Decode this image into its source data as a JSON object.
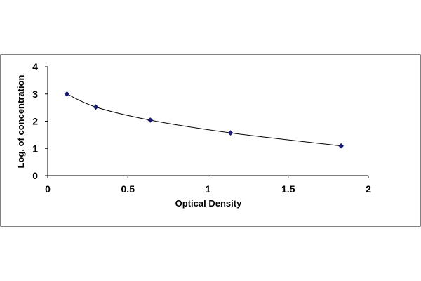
{
  "chart_data": {
    "type": "scatter",
    "title": "",
    "xlabel": "Optical Density",
    "ylabel": "Log. of concentration",
    "xlim": [
      0,
      2
    ],
    "ylim": [
      0,
      4
    ],
    "x_ticks": [
      "0",
      "0.5",
      "1",
      "1.5",
      "2"
    ],
    "y_ticks": [
      "0",
      "1",
      "2",
      "3",
      "4"
    ],
    "grid": false,
    "legend": "none",
    "fit_line": "smooth curve through points",
    "series": [
      {
        "x": [
          0.12,
          0.3,
          0.64,
          1.14,
          1.83
        ],
        "y": [
          3.0,
          2.52,
          2.04,
          1.57,
          1.09
        ],
        "color": "#1a1a6e"
      }
    ]
  }
}
